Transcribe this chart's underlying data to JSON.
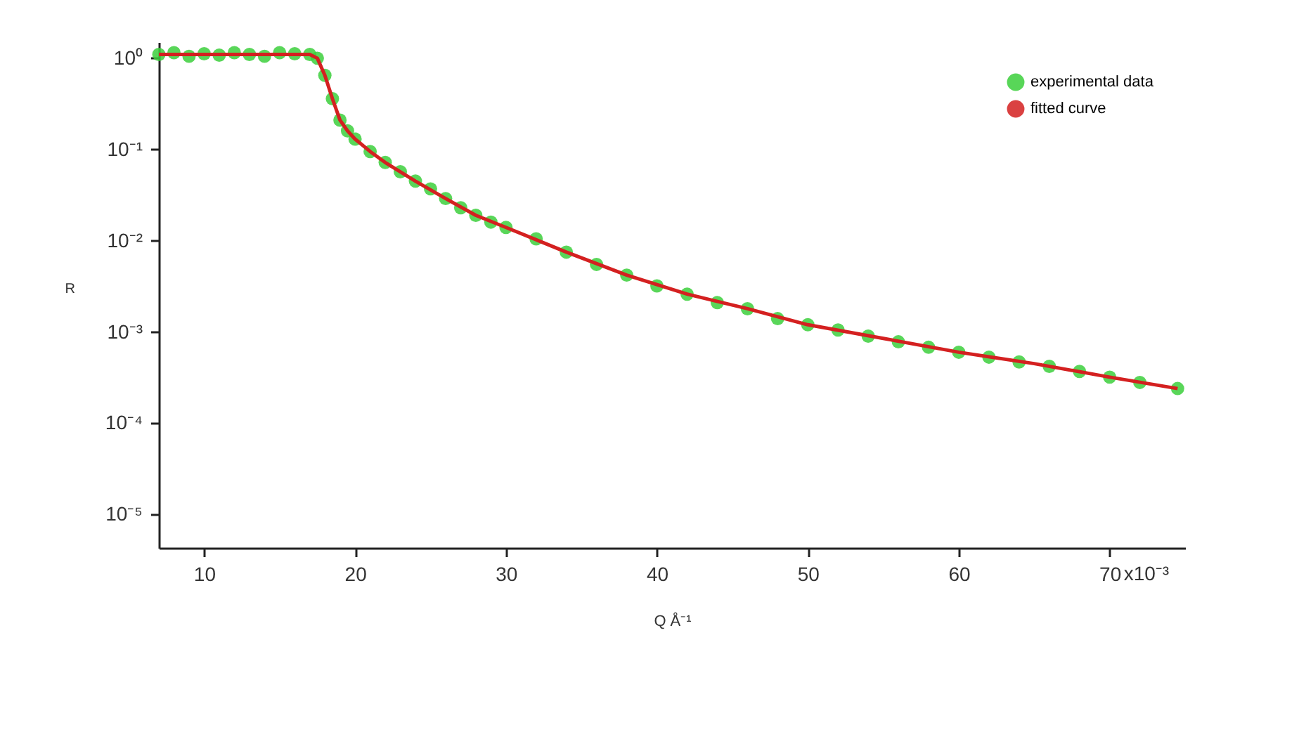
{
  "chart_data": {
    "type": "scatter",
    "xlabel": "Q Å⁻¹",
    "ylabel": "R",
    "annotations": [
      "x10⁻³"
    ],
    "log": "y",
    "grid": false,
    "legend": "top right",
    "xlim": [
      7,
      75
    ],
    "ylim": [
      4.3e-06,
      1.5
    ],
    "xticks": [
      10,
      20,
      30,
      40,
      50,
      60,
      70
    ],
    "yticks": [
      {
        "value": 1,
        "label": "10⁰"
      },
      {
        "value": 0.1,
        "label": "10⁻¹"
      },
      {
        "value": 0.01,
        "label": "10⁻²"
      },
      {
        "value": 0.001,
        "label": "10⁻³"
      },
      {
        "value": 0.0001,
        "label": "10⁻⁴"
      },
      {
        "value": 1e-05,
        "label": "10⁻⁵"
      }
    ],
    "series": [
      {
        "name": "experimental data",
        "color": "#3ccf3c",
        "marker": "circle",
        "x": [
          7,
          8,
          9,
          10,
          11,
          12,
          13,
          14,
          15,
          16,
          17,
          17.5,
          18,
          18.5,
          19,
          19.5,
          20,
          21,
          22,
          23,
          24,
          25,
          26,
          27,
          28,
          29,
          30,
          32,
          34,
          36,
          38,
          40,
          42,
          44,
          46,
          48,
          50,
          52,
          54,
          56,
          58,
          60,
          62,
          64,
          66,
          68,
          70,
          72,
          74.5
        ],
        "values": [
          1.1,
          1.15,
          1.05,
          1.12,
          1.08,
          1.15,
          1.1,
          1.05,
          1.15,
          1.12,
          1.1,
          1.0,
          0.65,
          0.36,
          0.21,
          0.16,
          0.13,
          0.095,
          0.072,
          0.057,
          0.045,
          0.037,
          0.029,
          0.023,
          0.019,
          0.016,
          0.014,
          0.0105,
          0.0075,
          0.0055,
          0.0042,
          0.0032,
          0.0026,
          0.0021,
          0.0018,
          0.0014,
          0.0012,
          0.00105,
          0.0009,
          0.00078,
          0.00068,
          0.0006,
          0.00053,
          0.00047,
          0.00042,
          0.00037,
          0.00032,
          0.00028,
          0.00024
        ]
      },
      {
        "name": "fitted curve",
        "type": "line",
        "color": "#d42020",
        "x": [
          7,
          12,
          17,
          17.5,
          18,
          18.5,
          19,
          19.5,
          20,
          21,
          22,
          24,
          26,
          28,
          30,
          34,
          38,
          42,
          46,
          50,
          55,
          60,
          65,
          70,
          74.5
        ],
        "values": [
          1.1,
          1.1,
          1.1,
          1.0,
          0.65,
          0.36,
          0.21,
          0.16,
          0.13,
          0.095,
          0.072,
          0.045,
          0.029,
          0.019,
          0.014,
          0.0075,
          0.0042,
          0.0026,
          0.0018,
          0.0012,
          0.00085,
          0.0006,
          0.00045,
          0.00032,
          0.00024
        ]
      }
    ]
  }
}
